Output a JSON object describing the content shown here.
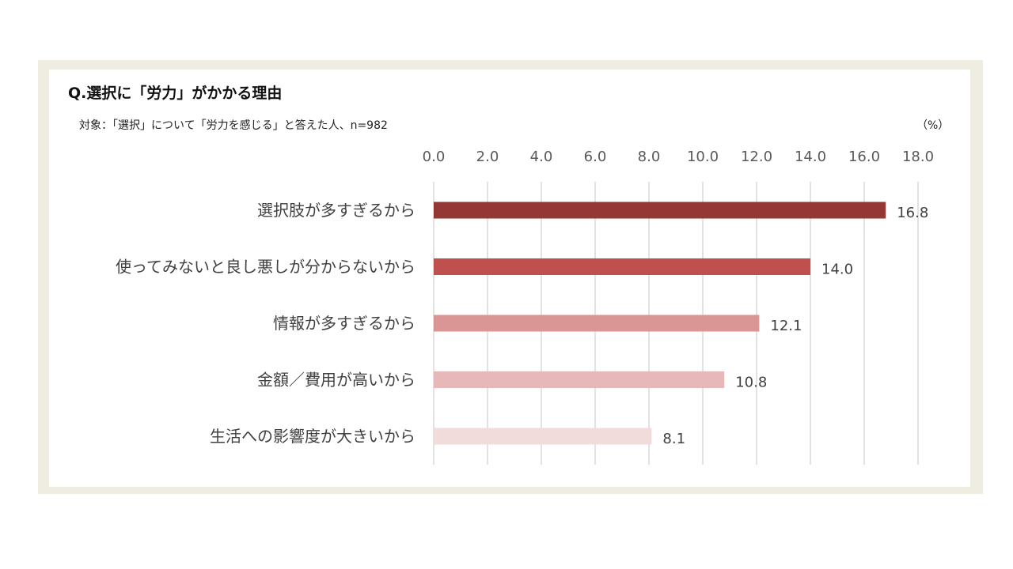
{
  "title": "Q.選択に「労力」がかかる理由",
  "subtitle": "対象：「選択」について「労力を感じる」と答えた人、n=982",
  "unit": "（%）",
  "colors": {
    "frame": "#efece1",
    "gridline": "#d9d9d9",
    "bars": [
      "#953735",
      "#c0504d",
      "#d99694",
      "#e6b9b8",
      "#f2dcdb"
    ]
  },
  "chart_data": {
    "type": "bar",
    "orientation": "horizontal",
    "categories": [
      "選択肢が多すぎるから",
      "使ってみないと良し悪しが分からないから",
      "情報が多すぎるから",
      "金額／費用が高いから",
      "生活への影響度が大きいから"
    ],
    "values": [
      16.8,
      14.0,
      12.1,
      10.8,
      8.1
    ],
    "value_labels": [
      "16.8",
      "14.0",
      "12.1",
      "10.8",
      "8.1"
    ],
    "xlim": [
      0,
      18
    ],
    "ticks": [
      "0.0",
      "2.0",
      "4.0",
      "6.0",
      "8.0",
      "10.0",
      "12.0",
      "14.0",
      "16.0",
      "18.0"
    ],
    "tick_values": [
      0,
      2,
      4,
      6,
      8,
      10,
      12,
      14,
      16,
      18
    ],
    "axis_position": "top",
    "grid": true,
    "legend": "none"
  }
}
